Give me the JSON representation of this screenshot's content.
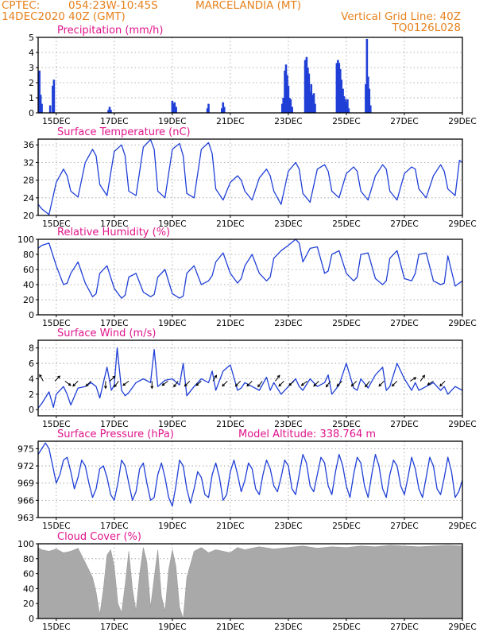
{
  "header": {
    "source": "CPTEC:",
    "coords": "054:23W-10:45S",
    "location": "MARCELANDIA (MT)",
    "date": "14DEC2020 40Z (GMT)",
    "grid_note": "Vertical Grid Line: 40Z",
    "code": "TQ0126L028"
  },
  "colors": {
    "line": "#1f3fd6",
    "title": "#e0148c",
    "header": "#e6821e",
    "cloud": "#a9a9a9",
    "arrow": "#000000"
  },
  "chart_data": [
    {
      "id": "precip",
      "type": "bar",
      "title": "Precipitation (mm/h)",
      "ylim": [
        0,
        5
      ],
      "yticks": [
        "0",
        "1",
        "2",
        "3",
        "4",
        "5"
      ],
      "xticks": [
        "15DEC",
        "17DEC",
        "19DEC",
        "21DEC",
        "23DEC",
        "25DEC",
        "27DEC",
        "29DEC"
      ],
      "xlim_days": [
        14.375,
        29.0
      ],
      "x_days": [
        14.42,
        14.46,
        14.5,
        14.79,
        14.88,
        14.92,
        16.8,
        16.84,
        16.88,
        19.0,
        19.04,
        19.08,
        19.13,
        20.21,
        20.25,
        20.71,
        20.75,
        20.79,
        22.79,
        22.83,
        22.88,
        22.92,
        22.96,
        23.0,
        23.04,
        23.08,
        23.13,
        23.58,
        23.63,
        23.67,
        23.71,
        23.75,
        23.79,
        23.83,
        23.88,
        23.92,
        24.67,
        24.71,
        24.75,
        24.79,
        24.83,
        24.88,
        24.92,
        24.96,
        25.0,
        25.04,
        25.08,
        25.67,
        25.71,
        25.75,
        25.79,
        25.83
      ],
      "values": [
        2.8,
        1.2,
        0.6,
        0.5,
        1.8,
        2.2,
        0.2,
        0.4,
        0.2,
        0.8,
        0.6,
        0.7,
        0.4,
        0.3,
        0.6,
        0.3,
        0.7,
        0.4,
        0.6,
        1.0,
        2.8,
        3.2,
        2.5,
        1.8,
        1.0,
        0.9,
        0.4,
        3.5,
        3.7,
        3.0,
        2.6,
        1.4,
        1.9,
        1.2,
        1.3,
        0.6,
        3.3,
        3.5,
        3.3,
        2.9,
        2.2,
        1.6,
        1.1,
        0.9,
        0.7,
        0.9,
        0.3,
        1.9,
        4.9,
        2.4,
        1.6,
        0.5
      ]
    },
    {
      "id": "temp",
      "type": "line",
      "title": "Surface Temperature (nC)",
      "ylim": [
        20,
        37.3
      ],
      "yticks": [
        "20",
        "24",
        "28",
        "32",
        "36"
      ],
      "xticks": [
        "15DEC",
        "17DEC",
        "19DEC",
        "21DEC",
        "23DEC",
        "25DEC",
        "27DEC",
        "29DEC"
      ],
      "xlim_days": [
        14.375,
        29.0
      ],
      "x_days": [
        14.375,
        14.5,
        14.75,
        15.0,
        15.25,
        15.375,
        15.5,
        15.75,
        16.0,
        16.25,
        16.375,
        16.5,
        16.75,
        17.0,
        17.25,
        17.375,
        17.5,
        17.75,
        18.0,
        18.25,
        18.375,
        18.5,
        18.75,
        19.0,
        19.25,
        19.375,
        19.5,
        19.75,
        20.0,
        20.25,
        20.375,
        20.5,
        20.75,
        21.0,
        21.25,
        21.375,
        21.5,
        21.75,
        22.0,
        22.25,
        22.375,
        22.5,
        22.75,
        23.0,
        23.25,
        23.375,
        23.5,
        23.75,
        24.0,
        24.25,
        24.375,
        24.5,
        24.75,
        25.0,
        25.25,
        25.375,
        25.5,
        25.75,
        26.0,
        26.25,
        26.375,
        26.5,
        26.75,
        27.0,
        27.25,
        27.375,
        27.5,
        27.75,
        28.0,
        28.25,
        28.375,
        28.5,
        28.75,
        28.9,
        29.0
      ],
      "values": [
        22.5,
        21.5,
        20.2,
        27.5,
        30.5,
        29.0,
        25.5,
        24.2,
        32.0,
        35.0,
        33.5,
        27.0,
        24.5,
        34.5,
        36.0,
        33.5,
        25.5,
        24.5,
        35.5,
        37.2,
        35.0,
        25.5,
        24.0,
        35.0,
        36.3,
        33.5,
        25.0,
        24.0,
        35.0,
        36.5,
        34.0,
        26.0,
        23.5,
        27.5,
        29.0,
        28.0,
        25.5,
        23.5,
        28.5,
        30.5,
        29.0,
        25.5,
        22.5,
        30.0,
        32.0,
        30.5,
        25.0,
        23.0,
        30.5,
        31.5,
        30.0,
        25.5,
        24.0,
        29.5,
        31.0,
        30.0,
        25.5,
        23.5,
        29.0,
        31.5,
        30.5,
        25.5,
        23.5,
        29.5,
        31.0,
        30.5,
        26.0,
        24.0,
        29.0,
        31.5,
        30.0,
        26.0,
        24.5,
        32.5,
        32.0
      ]
    },
    {
      "id": "rh",
      "type": "line",
      "title": "Relative Humidity (%)",
      "ylim": [
        0,
        100
      ],
      "yticks": [
        "0",
        "20",
        "40",
        "60",
        "80",
        "100"
      ],
      "xticks": [
        "15DEC",
        "17DEC",
        "19DEC",
        "21DEC",
        "23DEC",
        "25DEC",
        "27DEC",
        "29DEC"
      ],
      "xlim_days": [
        14.375,
        29.0
      ],
      "x_days": [
        14.375,
        14.5,
        14.75,
        15.0,
        15.25,
        15.375,
        15.5,
        15.75,
        16.0,
        16.25,
        16.375,
        16.5,
        16.75,
        17.0,
        17.25,
        17.375,
        17.5,
        17.75,
        18.0,
        18.25,
        18.375,
        18.5,
        18.75,
        19.0,
        19.25,
        19.375,
        19.5,
        19.75,
        20.0,
        20.25,
        20.375,
        20.5,
        20.75,
        21.0,
        21.25,
        21.375,
        21.5,
        21.75,
        22.0,
        22.25,
        22.375,
        22.5,
        22.75,
        23.0,
        23.25,
        23.375,
        23.5,
        23.75,
        24.0,
        24.25,
        24.375,
        24.5,
        24.75,
        25.0,
        25.25,
        25.375,
        25.5,
        25.75,
        26.0,
        26.25,
        26.375,
        26.5,
        26.75,
        27.0,
        27.25,
        27.375,
        27.5,
        27.75,
        28.0,
        28.25,
        28.375,
        28.5,
        28.75,
        29.0
      ],
      "values": [
        88,
        92,
        95,
        65,
        40,
        42,
        55,
        70,
        42,
        24,
        28,
        55,
        65,
        35,
        22,
        26,
        50,
        55,
        30,
        24,
        27,
        50,
        60,
        28,
        22,
        25,
        55,
        65,
        40,
        45,
        52,
        70,
        82,
        55,
        42,
        48,
        65,
        80,
        55,
        45,
        50,
        75,
        85,
        92,
        100,
        95,
        70,
        88,
        90,
        55,
        58,
        80,
        85,
        55,
        45,
        50,
        80,
        82,
        48,
        40,
        45,
        75,
        85,
        48,
        45,
        55,
        80,
        82,
        45,
        40,
        42,
        78,
        38,
        45
      ]
    },
    {
      "id": "wind",
      "type": "line",
      "title": "Surface Wind (m/s)",
      "ylim": [
        -0.8,
        9.0
      ],
      "yticks": [
        "0",
        "2",
        "4",
        "6",
        "8"
      ],
      "xticks": [
        "15DEC",
        "17DEC",
        "19DEC",
        "21DEC",
        "23DEC",
        "25DEC",
        "27DEC",
        "29DEC"
      ],
      "xlim_days": [
        14.375,
        29.0
      ],
      "x_days": [
        14.375,
        14.5,
        14.75,
        14.9,
        15.0,
        15.25,
        15.375,
        15.5,
        15.75,
        16.0,
        16.2,
        16.375,
        16.5,
        16.75,
        16.9,
        17.0,
        17.1,
        17.25,
        17.375,
        17.5,
        17.75,
        18.0,
        18.25,
        18.375,
        18.5,
        18.75,
        19.0,
        19.25,
        19.375,
        19.5,
        19.75,
        20.0,
        20.25,
        20.375,
        20.5,
        20.75,
        21.0,
        21.25,
        21.375,
        21.5,
        21.75,
        22.0,
        22.25,
        22.375,
        22.5,
        22.75,
        23.0,
        23.25,
        23.375,
        23.5,
        23.75,
        24.0,
        24.25,
        24.375,
        24.5,
        24.75,
        25.0,
        25.25,
        25.375,
        25.5,
        25.75,
        26.0,
        26.25,
        26.375,
        26.5,
        26.75,
        27.0,
        27.25,
        27.375,
        27.5,
        27.75,
        28.0,
        28.25,
        28.375,
        28.5,
        28.75,
        29.0
      ],
      "values": [
        0.2,
        0.8,
        2.3,
        0.3,
        2.0,
        3.0,
        2.0,
        0.6,
        2.8,
        3.0,
        3.5,
        3.0,
        1.5,
        5.5,
        2.5,
        3.2,
        8.0,
        2.5,
        1.8,
        2.2,
        3.5,
        4.0,
        3.5,
        7.8,
        3.0,
        3.8,
        4.0,
        3.2,
        6.0,
        1.8,
        3.0,
        4.0,
        3.5,
        5.0,
        2.5,
        5.0,
        5.8,
        2.5,
        2.8,
        3.5,
        3.0,
        2.5,
        4.2,
        2.5,
        3.5,
        2.0,
        3.0,
        4.0,
        3.0,
        2.5,
        4.0,
        3.0,
        3.5,
        4.5,
        2.0,
        3.2,
        6.0,
        2.8,
        2.5,
        4.0,
        2.8,
        4.5,
        5.5,
        2.5,
        3.0,
        6.0,
        4.0,
        2.5,
        3.5,
        2.5,
        3.0,
        3.5,
        2.5,
        3.0,
        2.0,
        3.0,
        2.5
      ],
      "vectors": [
        {
          "day": 14.55,
          "dx": -0.5,
          "dy": 0.9
        },
        {
          "day": 14.95,
          "dx": 0.7,
          "dy": 0.7
        },
        {
          "day": 15.3,
          "dx": 0.8,
          "dy": -0.6
        },
        {
          "day": 15.75,
          "dx": -0.7,
          "dy": -0.7
        },
        {
          "day": 16.2,
          "dx": -0.7,
          "dy": -0.7
        },
        {
          "day": 16.7,
          "dx": 0.0,
          "dy": -1.0
        },
        {
          "day": 16.85,
          "dx": 0.7,
          "dy": 0.7
        },
        {
          "day": 17.15,
          "dx": -0.6,
          "dy": -0.8
        },
        {
          "day": 17.5,
          "dx": -0.8,
          "dy": -0.6
        },
        {
          "day": 18.3,
          "dx": 0.0,
          "dy": -1.0
        },
        {
          "day": 18.85,
          "dx": -0.8,
          "dy": -0.6
        },
        {
          "day": 19.2,
          "dx": -0.6,
          "dy": -0.8
        },
        {
          "day": 19.6,
          "dx": -0.7,
          "dy": -0.7
        },
        {
          "day": 20.0,
          "dx": -0.7,
          "dy": -0.6
        },
        {
          "day": 20.4,
          "dx": 0.5,
          "dy": 0.8
        },
        {
          "day": 20.9,
          "dx": -0.7,
          "dy": -0.7
        },
        {
          "day": 21.35,
          "dx": -0.7,
          "dy": -0.7
        },
        {
          "day": 21.75,
          "dx": -0.7,
          "dy": -0.7
        },
        {
          "day": 22.1,
          "dx": -0.6,
          "dy": -0.8
        },
        {
          "day": 22.55,
          "dx": 0.6,
          "dy": 0.8
        },
        {
          "day": 22.85,
          "dx": -0.7,
          "dy": -0.7
        },
        {
          "day": 23.2,
          "dx": -0.7,
          "dy": -0.6
        },
        {
          "day": 23.65,
          "dx": -0.8,
          "dy": -0.6
        },
        {
          "day": 24.05,
          "dx": -0.7,
          "dy": -0.7
        },
        {
          "day": 24.45,
          "dx": -0.6,
          "dy": -0.8
        },
        {
          "day": 24.85,
          "dx": -0.7,
          "dy": -0.7
        },
        {
          "day": 25.35,
          "dx": -0.7,
          "dy": -0.7
        },
        {
          "day": 25.8,
          "dx": -0.6,
          "dy": -0.8
        },
        {
          "day": 26.3,
          "dx": -0.7,
          "dy": -0.7
        },
        {
          "day": 26.75,
          "dx": -0.7,
          "dy": -0.7
        },
        {
          "day": 27.2,
          "dx": 0.8,
          "dy": 0.5
        },
        {
          "day": 27.55,
          "dx": 0.6,
          "dy": 0.8
        },
        {
          "day": 28.0,
          "dx": -0.8,
          "dy": -0.5
        },
        {
          "day": 28.4,
          "dx": -0.7,
          "dy": -0.7
        }
      ]
    },
    {
      "id": "pres",
      "type": "line",
      "title": "Surface Pressure (hPa)",
      "subtitle": "Model Altitude: 338.764 m",
      "ylim": [
        963,
        976.3
      ],
      "yticks": [
        "963",
        "966",
        "969",
        "972",
        "975"
      ],
      "xticks": [
        "15DEC",
        "17DEC",
        "19DEC",
        "21DEC",
        "23DEC",
        "25DEC",
        "27DEC",
        "29DEC"
      ],
      "xlim_days": [
        14.375,
        29.0
      ],
      "x_days": [
        14.375,
        14.5,
        14.625,
        14.75,
        14.875,
        15.0,
        15.125,
        15.25,
        15.375,
        15.5,
        15.625,
        15.75,
        15.875,
        16.0,
        16.125,
        16.25,
        16.375,
        16.5,
        16.625,
        16.75,
        16.875,
        17.0,
        17.125,
        17.25,
        17.375,
        17.5,
        17.625,
        17.75,
        17.875,
        18.0,
        18.125,
        18.25,
        18.375,
        18.5,
        18.625,
        18.75,
        18.875,
        19.0,
        19.125,
        19.25,
        19.375,
        19.5,
        19.625,
        19.75,
        19.875,
        20.0,
        20.125,
        20.25,
        20.375,
        20.5,
        20.625,
        20.75,
        20.875,
        21.0,
        21.125,
        21.25,
        21.375,
        21.5,
        21.625,
        21.75,
        21.875,
        22.0,
        22.125,
        22.25,
        22.375,
        22.5,
        22.625,
        22.75,
        22.875,
        23.0,
        23.125,
        23.25,
        23.375,
        23.5,
        23.625,
        23.75,
        23.875,
        24.0,
        24.125,
        24.25,
        24.375,
        24.5,
        24.625,
        24.75,
        24.875,
        25.0,
        25.125,
        25.25,
        25.375,
        25.5,
        25.625,
        25.75,
        25.875,
        26.0,
        26.125,
        26.25,
        26.375,
        26.5,
        26.625,
        26.75,
        26.875,
        27.0,
        27.125,
        27.25,
        27.375,
        27.5,
        27.625,
        27.75,
        27.875,
        28.0,
        28.125,
        28.25,
        28.375,
        28.5,
        28.625,
        28.75,
        28.875,
        29.0
      ],
      "values": [
        974.0,
        975.0,
        976.0,
        975.0,
        972.0,
        969.0,
        970.5,
        973.0,
        973.5,
        971.0,
        968.0,
        970.0,
        973.0,
        972.0,
        969.0,
        966.5,
        968.0,
        971.5,
        972.0,
        970.0,
        967.0,
        966.0,
        969.0,
        973.0,
        972.0,
        969.0,
        966.0,
        967.5,
        971.5,
        972.5,
        969.0,
        966.0,
        966.5,
        970.5,
        972.5,
        970.0,
        966.5,
        965.0,
        968.5,
        973.0,
        972.0,
        968.0,
        965.5,
        968.0,
        971.0,
        970.0,
        967.0,
        966.5,
        970.5,
        972.5,
        970.0,
        966.0,
        967.0,
        971.0,
        973.0,
        970.5,
        967.5,
        969.5,
        972.5,
        971.5,
        968.0,
        967.0,
        970.5,
        973.0,
        971.5,
        968.5,
        967.5,
        970.0,
        973.0,
        972.0,
        968.0,
        967.0,
        970.5,
        974.0,
        972.5,
        968.5,
        967.5,
        970.5,
        973.5,
        972.5,
        968.5,
        967.0,
        971.0,
        974.0,
        972.0,
        968.5,
        966.5,
        970.5,
        973.5,
        972.5,
        968.5,
        966.5,
        970.5,
        974.0,
        972.0,
        968.0,
        966.5,
        970.5,
        973.0,
        972.0,
        968.5,
        967.0,
        970.0,
        973.5,
        971.5,
        968.0,
        966.5,
        970.0,
        973.5,
        972.0,
        968.0,
        967.0,
        970.0,
        973.5,
        971.0,
        966.5,
        967.5,
        969.5
      ]
    },
    {
      "id": "cloud",
      "type": "area",
      "title": "Cloud Cover (%)",
      "ylim": [
        0,
        100
      ],
      "yticks": [
        "0",
        "20",
        "40",
        "60",
        "80",
        "100"
      ],
      "xticks": [
        "15DEC",
        "17DEC",
        "19DEC",
        "21DEC",
        "23DEC",
        "25DEC",
        "27DEC",
        "29DEC"
      ],
      "xlim_days": [
        14.375,
        29.0
      ],
      "x_days": [
        14.375,
        14.5,
        14.75,
        15.0,
        15.25,
        15.5,
        15.75,
        16.0,
        16.25,
        16.375,
        16.5,
        16.625,
        16.75,
        16.875,
        17.0,
        17.125,
        17.25,
        17.375,
        17.5,
        17.625,
        17.75,
        17.875,
        18.0,
        18.125,
        18.25,
        18.375,
        18.5,
        18.625,
        18.75,
        18.875,
        19.0,
        19.125,
        19.25,
        19.375,
        19.5,
        19.75,
        20.0,
        20.25,
        20.5,
        20.75,
        21.0,
        21.25,
        21.5,
        21.75,
        22.0,
        22.5,
        23.0,
        23.5,
        24.0,
        24.5,
        25.0,
        25.5,
        26.0,
        26.5,
        27.0,
        27.5,
        28.0,
        28.5,
        29.0
      ],
      "values": [
        95,
        92,
        90,
        93,
        88,
        90,
        94,
        75,
        55,
        35,
        5,
        40,
        85,
        92,
        70,
        20,
        8,
        45,
        90,
        40,
        10,
        60,
        95,
        75,
        15,
        55,
        92,
        30,
        10,
        65,
        92,
        70,
        15,
        0,
        55,
        90,
        95,
        88,
        92,
        90,
        88,
        95,
        92,
        94,
        96,
        93,
        95,
        97,
        94,
        96,
        95,
        97,
        96,
        98,
        97,
        96,
        97,
        98,
        97
      ]
    }
  ]
}
